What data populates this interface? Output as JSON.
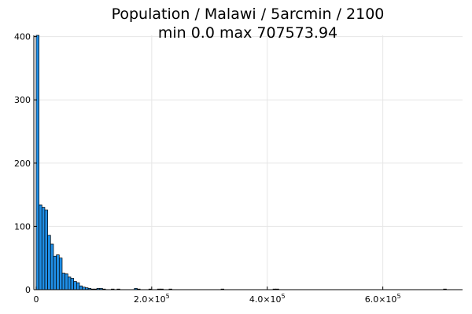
{
  "chart_data": {
    "type": "bar",
    "title": "Population / Malawi / 5arcmin / 2100",
    "subtitle": "min 0.0  max 707573.94",
    "xlabel": "",
    "ylabel": "",
    "xlim": [
      -4000,
      738000
    ],
    "ylim": [
      0,
      402
    ],
    "bin_width": 5000,
    "grid": true,
    "legend": "none",
    "bar_color": "#1f8ee6",
    "xticks": [
      {
        "value": 0,
        "mantissa": "0",
        "exponent": ""
      },
      {
        "value": 200000,
        "mantissa": "2.0×10",
        "exponent": "5"
      },
      {
        "value": 400000,
        "mantissa": "4.0×10",
        "exponent": "5"
      },
      {
        "value": 600000,
        "mantissa": "6.0×10",
        "exponent": "5"
      }
    ],
    "yticks": [
      0,
      100,
      200,
      300,
      400
    ],
    "bins": [
      {
        "x": 0,
        "count": 402
      },
      {
        "x": 5000,
        "count": 134
      },
      {
        "x": 10000,
        "count": 130
      },
      {
        "x": 15000,
        "count": 126
      },
      {
        "x": 20000,
        "count": 86
      },
      {
        "x": 25000,
        "count": 72
      },
      {
        "x": 30000,
        "count": 53
      },
      {
        "x": 35000,
        "count": 55
      },
      {
        "x": 40000,
        "count": 50
      },
      {
        "x": 45000,
        "count": 26
      },
      {
        "x": 50000,
        "count": 25
      },
      {
        "x": 55000,
        "count": 20
      },
      {
        "x": 60000,
        "count": 18
      },
      {
        "x": 65000,
        "count": 13
      },
      {
        "x": 70000,
        "count": 11
      },
      {
        "x": 75000,
        "count": 6
      },
      {
        "x": 80000,
        "count": 4
      },
      {
        "x": 85000,
        "count": 3
      },
      {
        "x": 90000,
        "count": 2
      },
      {
        "x": 95000,
        "count": 1
      },
      {
        "x": 100000,
        "count": 1
      },
      {
        "x": 105000,
        "count": 2
      },
      {
        "x": 110000,
        "count": 2
      },
      {
        "x": 115000,
        "count": 1
      },
      {
        "x": 130000,
        "count": 1
      },
      {
        "x": 140000,
        "count": 1
      },
      {
        "x": 170000,
        "count": 2
      },
      {
        "x": 175000,
        "count": 1
      },
      {
        "x": 195000,
        "count": 1
      },
      {
        "x": 210000,
        "count": 1
      },
      {
        "x": 215000,
        "count": 1
      },
      {
        "x": 230000,
        "count": 1
      },
      {
        "x": 320000,
        "count": 1
      },
      {
        "x": 410000,
        "count": 1
      },
      {
        "x": 415000,
        "count": 1
      },
      {
        "x": 705000,
        "count": 1
      }
    ]
  }
}
